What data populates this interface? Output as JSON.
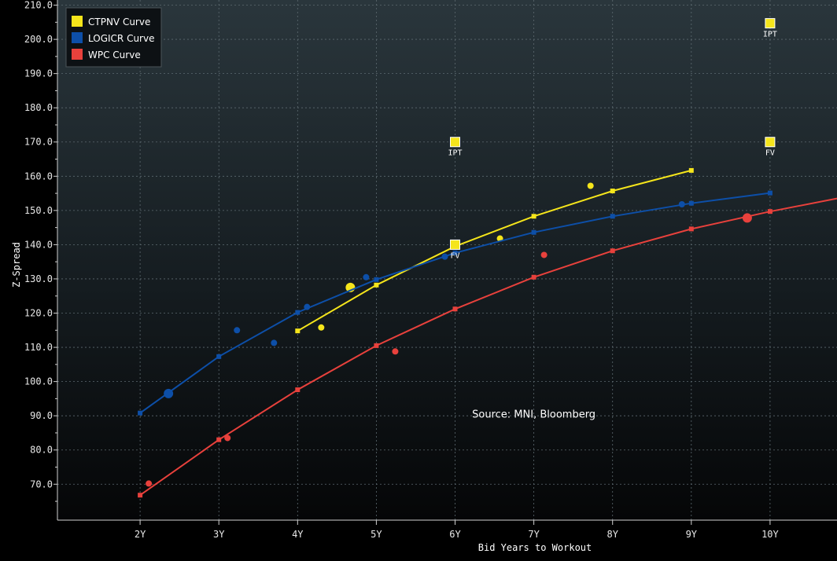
{
  "chart_data": {
    "type": "line",
    "xlabel": "Bid Years to Workout",
    "ylabel": "Z-Spread",
    "x_ticks": [
      2,
      3,
      4,
      5,
      6,
      7,
      8,
      9,
      10
    ],
    "x_tick_labels": [
      "2Y",
      "3Y",
      "4Y",
      "5Y",
      "6Y",
      "7Y",
      "8Y",
      "9Y",
      "10Y"
    ],
    "xlim": [
      0.95,
      10.85
    ],
    "y_ticks": [
      70,
      80,
      90,
      100,
      110,
      120,
      130,
      140,
      150,
      160,
      170,
      180,
      190,
      200,
      210
    ],
    "y_tick_labels": [
      "70.0",
      "80.0",
      "90.0",
      "100.0",
      "110.0",
      "120.0",
      "130.0",
      "140.0",
      "150.0",
      "160.0",
      "170.0",
      "180.0",
      "190.0",
      "200.0",
      "210.0"
    ],
    "ylim": [
      59.5,
      211.5
    ],
    "grid": true,
    "legend_position": "top-left",
    "annotation": "Source: MNI, Bloomberg",
    "annotation_pos": {
      "x": 7.0,
      "y": 89.5
    },
    "series": [
      {
        "name": "CTPNV Curve",
        "color": "#f5e51b",
        "curve": {
          "x": [
            4,
            5,
            6,
            7,
            8,
            9
          ],
          "y": [
            114.8,
            128.2,
            139.5,
            148.3,
            155.7,
            161.7
          ]
        },
        "bonds": [
          {
            "x": 4.3,
            "y": 115.8
          },
          {
            "x": 4.67,
            "y": 127.5,
            "large": true
          },
          {
            "x": 6.57,
            "y": 141.8
          },
          {
            "x": 7.72,
            "y": 157.2
          }
        ],
        "markers": [
          {
            "x": 6,
            "y": 170.0,
            "label": "IPT"
          },
          {
            "x": 10,
            "y": 204.7,
            "label": "IPT"
          },
          {
            "x": 10,
            "y": 170.0,
            "label": "FV"
          },
          {
            "x": 6,
            "y": 140.0,
            "label": "FV"
          }
        ]
      },
      {
        "name": "LOGICR Curve",
        "color": "#0d4fa8",
        "curve": {
          "x": [
            2,
            3,
            4,
            5,
            6,
            7,
            8,
            9,
            10
          ],
          "y": [
            90.8,
            107.3,
            120.2,
            129.8,
            137.6,
            143.6,
            148.3,
            152.1,
            155.1
          ]
        },
        "bonds": [
          {
            "x": 2.36,
            "y": 96.5,
            "large": true
          },
          {
            "x": 3.23,
            "y": 115.0
          },
          {
            "x": 3.7,
            "y": 111.3
          },
          {
            "x": 4.12,
            "y": 121.8
          },
          {
            "x": 4.87,
            "y": 130.5
          },
          {
            "x": 5.87,
            "y": 136.5
          },
          {
            "x": 8.88,
            "y": 151.8
          }
        ],
        "markers": []
      },
      {
        "name": "WPC Curve",
        "color": "#e8413c",
        "curve": {
          "x": [
            2,
            3,
            4,
            5,
            6,
            7,
            8,
            9,
            10,
            10.85
          ],
          "y": [
            66.8,
            83.0,
            97.6,
            110.5,
            121.2,
            130.5,
            138.2,
            144.6,
            149.7,
            153.5
          ]
        },
        "bonds": [
          {
            "x": 2.11,
            "y": 70.2
          },
          {
            "x": 3.11,
            "y": 83.5
          },
          {
            "x": 5.24,
            "y": 108.8
          },
          {
            "x": 7.13,
            "y": 137.0
          },
          {
            "x": 9.71,
            "y": 147.8,
            "large": true
          }
        ],
        "markers": []
      }
    ]
  }
}
